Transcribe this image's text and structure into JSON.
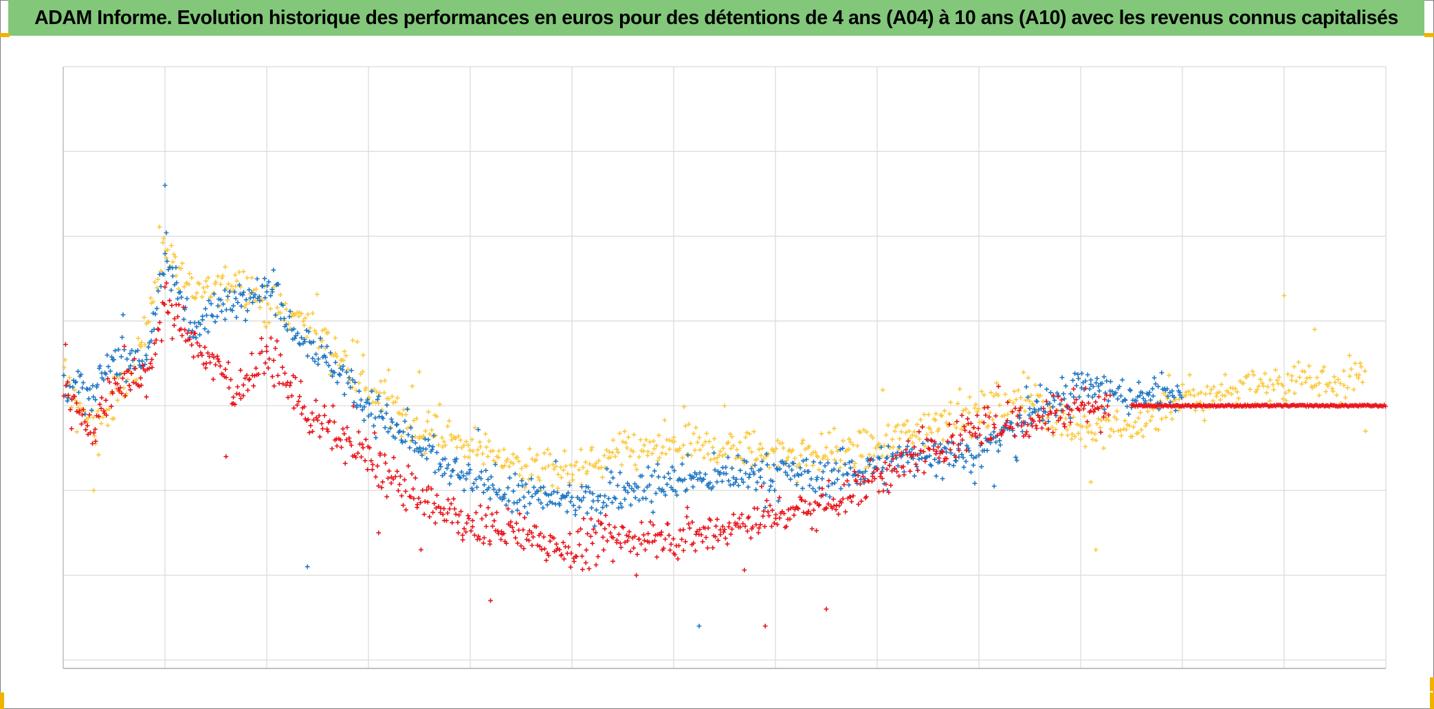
{
  "header": {
    "title": "ADAM Informe. Evolution historique des performances en euros pour des détentions de 4 ans (A04) à 10 ans (A10) avec les revenus connus capitalisés",
    "bar_color": "#82c77a"
  },
  "chart_data": {
    "type": "scatter",
    "title": "ADAM Informe. Evolution historique des performances en euros pour des détentions de 4 ans (A04) à 10 ans (A10) avec les revenus connus capitalisés",
    "xlabel": "",
    "ylabel": "",
    "x_ticks_labeled": false,
    "y_ticks_labeled": false,
    "grid": true,
    "legend": "none",
    "xlim": [
      0,
      13
    ],
    "ylim": [
      -3.1,
      4.0
    ],
    "marker": "plus",
    "series": [
      {
        "color": "#fbc93d",
        "trend": [
          [
            0,
            0.35
          ],
          [
            0.3,
            -0.3
          ],
          [
            0.7,
            0.4
          ],
          [
            1.0,
            1.9
          ],
          [
            1.3,
            1.3
          ],
          [
            1.7,
            1.5
          ],
          [
            2.0,
            1.2
          ],
          [
            2.4,
            1.0
          ],
          [
            3.0,
            0.2
          ],
          [
            3.5,
            -0.25
          ],
          [
            4.0,
            -0.45
          ],
          [
            4.5,
            -0.7
          ],
          [
            5.0,
            -0.8
          ],
          [
            5.5,
            -0.55
          ],
          [
            6.0,
            -0.5
          ],
          [
            6.5,
            -0.5
          ],
          [
            7.0,
            -0.55
          ],
          [
            7.5,
            -0.55
          ],
          [
            8.0,
            -0.5
          ],
          [
            8.5,
            -0.2
          ],
          [
            9.0,
            -0.1
          ],
          [
            9.5,
            0.1
          ],
          [
            10.0,
            -0.3
          ],
          [
            10.5,
            -0.25
          ],
          [
            11.0,
            0.05
          ],
          [
            11.5,
            0.2
          ],
          [
            12.0,
            0.3
          ],
          [
            12.5,
            0.3
          ],
          [
            12.8,
            0.35
          ]
        ],
        "end_x": 12.8,
        "spread": 0.16,
        "points": 900,
        "outliers": [
          [
            0.3,
            -1.0
          ],
          [
            12.0,
            1.3
          ],
          [
            12.8,
            -0.3
          ],
          [
            10.15,
            -1.7
          ],
          [
            10.1,
            -0.9
          ],
          [
            3.5,
            0.4
          ],
          [
            6.5,
            0.0
          ],
          [
            12.3,
            0.9
          ]
        ]
      },
      {
        "color": "#1f77c4",
        "trend": [
          [
            0,
            0.3
          ],
          [
            0.3,
            0.1
          ],
          [
            0.5,
            0.6
          ],
          [
            0.8,
            0.5
          ],
          [
            1.0,
            1.7
          ],
          [
            1.3,
            0.9
          ],
          [
            1.7,
            1.3
          ],
          [
            2.0,
            1.4
          ],
          [
            2.3,
            0.9
          ],
          [
            2.8,
            0.3
          ],
          [
            3.0,
            0.0
          ],
          [
            3.5,
            -0.5
          ],
          [
            4.0,
            -0.9
          ],
          [
            4.5,
            -1.05
          ],
          [
            5.0,
            -1.15
          ],
          [
            5.5,
            -1.0
          ],
          [
            6.0,
            -0.9
          ],
          [
            6.5,
            -0.85
          ],
          [
            7.0,
            -0.8
          ],
          [
            7.5,
            -0.85
          ],
          [
            8.0,
            -0.7
          ],
          [
            8.5,
            -0.55
          ],
          [
            9.0,
            -0.55
          ],
          [
            9.5,
            -0.1
          ],
          [
            10.0,
            0.25
          ],
          [
            10.5,
            0.1
          ],
          [
            11.0,
            0.2
          ],
          [
            11.5,
            0.25
          ],
          [
            12.0,
            0.3
          ],
          [
            12.5,
            0.3
          ],
          [
            12.8,
            0.3
          ]
        ],
        "end_x": 11.0,
        "spread": 0.15,
        "points": 900,
        "outliers": [
          [
            1.0,
            2.6
          ],
          [
            2.4,
            -1.9
          ],
          [
            6.25,
            -2.6
          ],
          [
            8.1,
            -1.0
          ],
          [
            9.15,
            -0.95
          ],
          [
            10.1,
            0.25
          ]
        ]
      },
      {
        "color": "#e8151b",
        "trend": [
          [
            0,
            0.2
          ],
          [
            0.3,
            -0.3
          ],
          [
            0.5,
            0.3
          ],
          [
            0.8,
            0.3
          ],
          [
            1.0,
            1.2
          ],
          [
            1.3,
            0.7
          ],
          [
            1.7,
            0.2
          ],
          [
            2.0,
            0.6
          ],
          [
            2.3,
            0.1
          ],
          [
            2.5,
            -0.2
          ],
          [
            3.0,
            -0.6
          ],
          [
            3.5,
            -1.1
          ],
          [
            4.0,
            -1.4
          ],
          [
            4.5,
            -1.5
          ],
          [
            5.0,
            -1.7
          ],
          [
            5.5,
            -1.55
          ],
          [
            6.0,
            -1.55
          ],
          [
            6.5,
            -1.45
          ],
          [
            7.0,
            -1.3
          ],
          [
            7.5,
            -1.15
          ],
          [
            8.0,
            -0.85
          ],
          [
            8.5,
            -0.55
          ],
          [
            9.0,
            -0.25
          ],
          [
            9.5,
            -0.15
          ],
          [
            10.0,
            0.0
          ],
          [
            10.5,
            0.0
          ],
          [
            13.0,
            0.0
          ]
        ],
        "end_x": 10.3,
        "flat_from_x": 10.5,
        "flat_value": 0.0,
        "spread": 0.17,
        "points": 850,
        "outliers": [
          [
            1.0,
            1.4
          ],
          [
            1.6,
            -0.6
          ],
          [
            3.1,
            -1.5
          ],
          [
            4.2,
            -2.3
          ],
          [
            6.9,
            -2.6
          ],
          [
            7.5,
            -2.4
          ],
          [
            0.6,
            0.7
          ]
        ]
      }
    ]
  }
}
